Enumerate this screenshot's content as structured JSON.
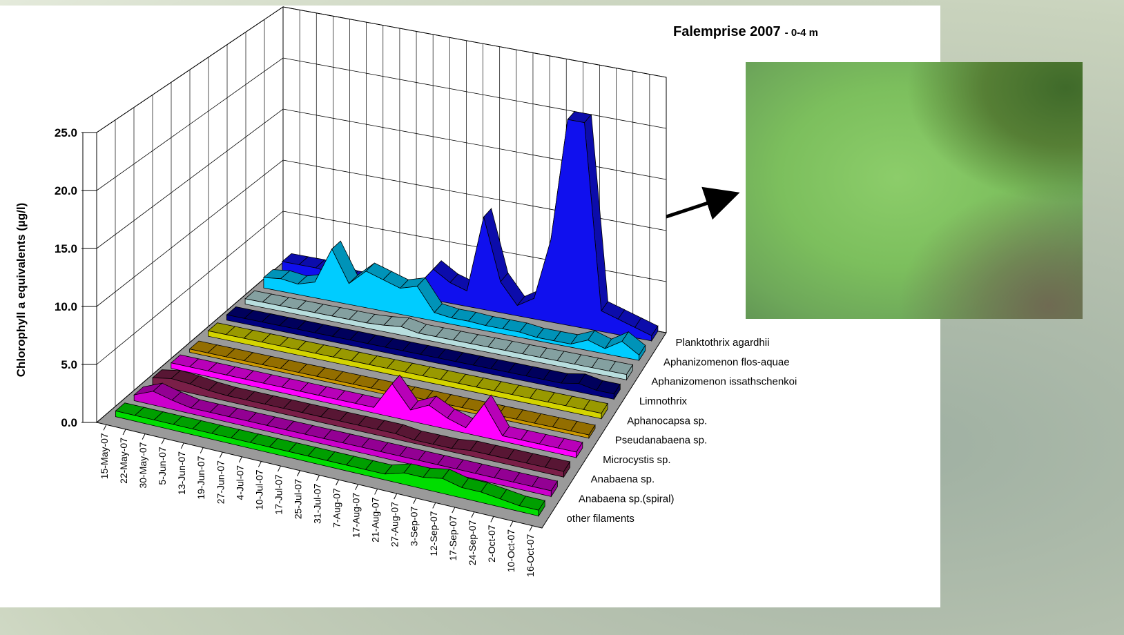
{
  "chart_data": {
    "type": "area3d",
    "title": "Falemprise 2007",
    "subtitle": "- 0-4 m",
    "y_label": "Chlorophyll a equivalents (µg/l)",
    "categories": [
      "15-May-07",
      "22-May-07",
      "30-May-07",
      "5-Jun-07",
      "13-Jun-07",
      "19-Jun-07",
      "27-Jun-07",
      "4-Jul-07",
      "10-Jul-07",
      "17-Jul-07",
      "25-Jul-07",
      "31-Jul-07",
      "7-Aug-07",
      "17-Aug-07",
      "21-Aug-07",
      "27-Aug-07",
      "3-Sep-07",
      "12-Sep-07",
      "17-Sep-07",
      "24-Sep-07",
      "2-Oct-07",
      "10-Oct-07",
      "16-Oct-07"
    ],
    "ylim": [
      0,
      25
    ],
    "yticks": [
      {
        "value": 0,
        "label": "0.0"
      },
      {
        "value": 5,
        "label": "5.0"
      },
      {
        "value": 10,
        "label": "10.0"
      },
      {
        "value": 15,
        "label": "15.0"
      },
      {
        "value": 20,
        "label": "20.0"
      },
      {
        "value": 25,
        "label": "25.0"
      }
    ],
    "grid": true,
    "series": [
      {
        "name": "other filaments",
        "color": "#00dd00",
        "values": [
          0.5,
          0.5,
          0.5,
          0.5,
          0.5,
          0.5,
          0.5,
          0.5,
          0.5,
          0.5,
          0.5,
          0.5,
          0.5,
          0.5,
          0.5,
          1,
          1,
          1.3,
          0.9,
          0.9,
          0.7,
          0.5,
          0.5
        ]
      },
      {
        "name": "Anabaena sp.(spiral)",
        "color": "#cc00cc",
        "values": [
          0.5,
          1.2,
          0.8,
          0.5,
          0.5,
          0.5,
          0.5,
          0.5,
          0.5,
          0.5,
          0.5,
          0.5,
          0.5,
          0.5,
          0.5,
          0.5,
          0.5,
          0.5,
          0.5,
          0.5,
          0.5,
          0.5,
          0.5
        ]
      },
      {
        "name": "Anabaena sp.",
        "color": "#7a1f48",
        "values": [
          0.6,
          0.9,
          0.8,
          0.6,
          0.5,
          0.5,
          0.5,
          0.5,
          0.5,
          0.5,
          0.5,
          0.5,
          0.5,
          0.5,
          0.3,
          0.3,
          0.3,
          0.5,
          0.5,
          0.5,
          0.5,
          0.5,
          0.5
        ]
      },
      {
        "name": "Microcystis sp.",
        "color": "#ff00ff",
        "values": [
          0.5,
          0.5,
          0.5,
          0.5,
          0.5,
          0.5,
          0.5,
          0.5,
          0.5,
          0.5,
          0.5,
          0.5,
          3,
          1,
          1.8,
          1,
          0.5,
          3,
          0.5,
          0.5,
          0.5,
          0.5,
          0.5
        ]
      },
      {
        "name": "Pseudanabaena sp.",
        "color": "#cc9900",
        "values": [
          0.3,
          0.3,
          0.3,
          0.3,
          0.3,
          0.3,
          0.3,
          0.3,
          0.3,
          0.3,
          0.3,
          0.3,
          0.3,
          0.3,
          0.3,
          0.3,
          0.3,
          0.3,
          0.3,
          0.3,
          0.3,
          0.3,
          0.3
        ]
      },
      {
        "name": "Aphanocapsa sp.",
        "color": "#d4d400",
        "values": [
          0.5,
          0.5,
          0.5,
          0.5,
          0.5,
          0.5,
          0.5,
          0.5,
          0.5,
          0.5,
          0.5,
          0.5,
          0.5,
          0.5,
          0.5,
          0.5,
          0.5,
          0.5,
          0.5,
          0.5,
          0.5,
          0.5,
          0.5
        ]
      },
      {
        "name": "Limnothrix",
        "color": "#000080",
        "values": [
          0.5,
          0.5,
          0.5,
          0.5,
          0.5,
          0.5,
          0.5,
          0.5,
          0.5,
          0.5,
          0.5,
          0.5,
          0.5,
          0.5,
          0.5,
          0.5,
          0.5,
          0.5,
          0.5,
          0.5,
          0.8,
          0.5,
          0.5
        ]
      },
      {
        "name": "Aphanizomenon issathschenkoi",
        "color": "#b8dede",
        "values": [
          0.5,
          0.5,
          0.5,
          0.5,
          0.5,
          0.5,
          0.5,
          0.5,
          0.6,
          0.8,
          0.5,
          0.5,
          0.5,
          0.5,
          0.5,
          0.5,
          0.5,
          0.5,
          0.5,
          0.5,
          0.5,
          0.5,
          0.5
        ]
      },
      {
        "name": "Aphanizomenon flos-aquae",
        "color": "#00ccff",
        "values": [
          1,
          1.2,
          1,
          1.5,
          5,
          2,
          3.5,
          3,
          2.5,
          3,
          0.8,
          0.6,
          0.6,
          0.5,
          0.5,
          0.5,
          0.3,
          0.3,
          0.3,
          1,
          0.5,
          1.5,
          0.5
        ]
      },
      {
        "name": "Planktothrix agardhii",
        "color": "#1010ee",
        "values": [
          1,
          1,
          1,
          0.8,
          0.5,
          0.5,
          0.5,
          0.5,
          1,
          3,
          2,
          1.5,
          9,
          3,
          1,
          2,
          8,
          20,
          20,
          2,
          1.5,
          1,
          0.5
        ]
      }
    ]
  }
}
